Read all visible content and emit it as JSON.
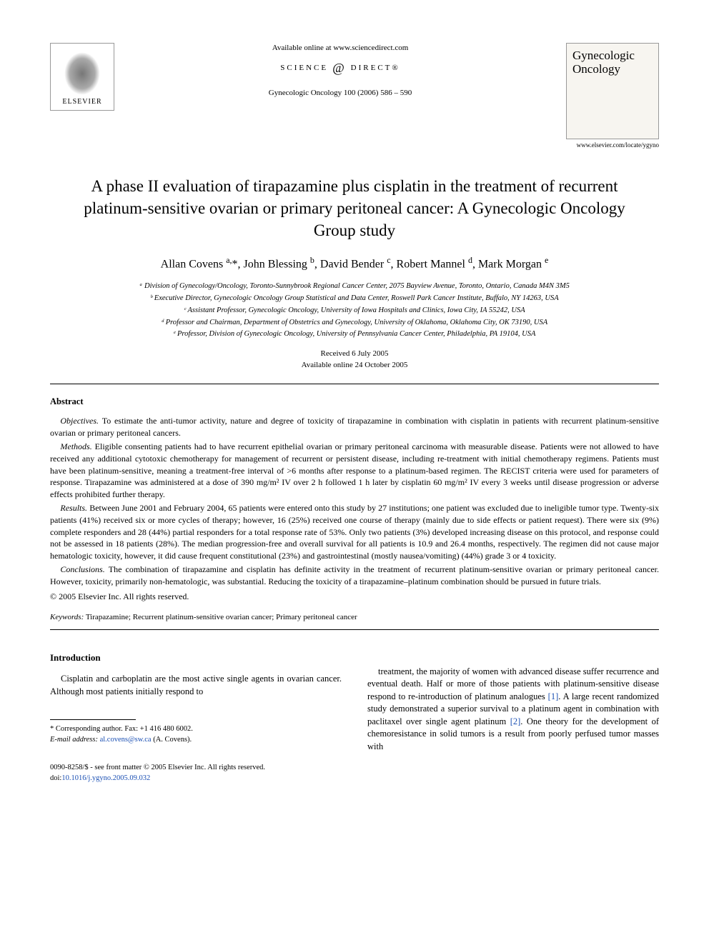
{
  "header": {
    "available_at": "Available online at www.sciencedirect.com",
    "sd_left": "SCIENCE",
    "sd_right": "DIRECT®",
    "citation": "Gynecologic Oncology 100 (2006) 586 – 590",
    "elsevier_label": "ELSEVIER",
    "journal_name": "Gynecologic Oncology",
    "journal_url": "www.elsevier.com/locate/ygyno"
  },
  "title": "A phase II evaluation of tirapazamine plus cisplatin in the treatment of recurrent platinum-sensitive ovarian or primary peritoneal cancer: A Gynecologic Oncology Group study",
  "authors_html": "Allan Covens <sup>a,</sup>*, John Blessing <sup>b</sup>, David Bender <sup>c</sup>, Robert Mannel <sup>d</sup>, Mark Morgan <sup>e</sup>",
  "affiliations": [
    "ᵃ Division of Gynecology/Oncology, Toronto-Sunnybrook Regional Cancer Center, 2075 Bayview Avenue, Toronto, Ontario, Canada M4N 3M5",
    "ᵇ Executive Director, Gynecologic Oncology Group Statistical and Data Center, Roswell Park Cancer Institute, Buffalo, NY 14263, USA",
    "ᶜ Assistant Professor, Gynecologic Oncology, University of Iowa Hospitals and Clinics, Iowa City, IA 55242, USA",
    "ᵈ Professor and Chairman, Department of Obstetrics and Gynecology, University of Oklahoma, Oklahoma City, OK 73190, USA",
    "ᵉ Professor, Division of Gynecologic Oncology, University of Pennsylvania Cancer Center, Philadelphia, PA 19104, USA"
  ],
  "dates": {
    "received": "Received 6 July 2005",
    "online": "Available online 24 October 2005"
  },
  "abstract": {
    "heading": "Abstract",
    "sections": [
      {
        "label": "Objectives.",
        "text": "To estimate the anti-tumor activity, nature and degree of toxicity of tirapazamine in combination with cisplatin in patients with recurrent platinum-sensitive ovarian or primary peritoneal cancers."
      },
      {
        "label": "Methods.",
        "text": "Eligible consenting patients had to have recurrent epithelial ovarian or primary peritoneal carcinoma with measurable disease. Patients were not allowed to have received any additional cytotoxic chemotherapy for management of recurrent or persistent disease, including re-treatment with initial chemotherapy regimens. Patients must have been platinum-sensitive, meaning a treatment-free interval of >6 months after response to a platinum-based regimen. The RECIST criteria were used for parameters of response. Tirapazamine was administered at a dose of 390 mg/m² IV over 2 h followed 1 h later by cisplatin 60 mg/m² IV every 3 weeks until disease progression or adverse effects prohibited further therapy."
      },
      {
        "label": "Results.",
        "text": "Between June 2001 and February 2004, 65 patients were entered onto this study by 27 institutions; one patient was excluded due to ineligible tumor type. Twenty-six patients (41%) received six or more cycles of therapy; however, 16 (25%) received one course of therapy (mainly due to side effects or patient request). There were six (9%) complete responders and 28 (44%) partial responders for a total response rate of 53%. Only two patients (3%) developed increasing disease on this protocol, and response could not be assessed in 18 patients (28%). The median progression-free and overall survival for all patients is 10.9 and 26.4 months, respectively. The regimen did not cause major hematologic toxicity, however, it did cause frequent constitutional (23%) and gastrointestinal (mostly nausea/vomiting) (44%) grade 3 or 4 toxicity."
      },
      {
        "label": "Conclusions.",
        "text": "The combination of tirapazamine and cisplatin has definite activity in the treatment of recurrent platinum-sensitive ovarian or primary peritoneal cancer. However, toxicity, primarily non-hematologic, was substantial. Reducing the toxicity of a tirapazamine–platinum combination should be pursued in future trials."
      }
    ],
    "copyright": "© 2005 Elsevier Inc. All rights reserved."
  },
  "keywords": {
    "label": "Keywords:",
    "text": "Tirapazamine; Recurrent platinum-sensitive ovarian cancer; Primary peritoneal cancer"
  },
  "intro": {
    "heading": "Introduction",
    "col1": "Cisplatin and carboplatin are the most active single agents in ovarian cancer. Although most patients initially respond to",
    "col2_part1": "treatment, the majority of women with advanced disease suffer recurrence and eventual death. Half or more of those patients with platinum-sensitive disease respond to re-introduction of platinum analogues ",
    "ref1": "[1]",
    "col2_part2": ". A large recent randomized study demonstrated a superior survival to a platinum agent in combination with paclitaxel over single agent platinum ",
    "ref2": "[2]",
    "col2_part3": ". One theory for the development of chemoresistance in solid tumors is a result from poorly perfused tumor masses with"
  },
  "footnotes": {
    "corr": "* Corresponding author. Fax: +1 416 480 6002.",
    "email_label": "E-mail address:",
    "email": "al.covens@sw.ca",
    "email_suffix": "(A. Covens)."
  },
  "footer": {
    "left_line1": "0090-8258/$ - see front matter © 2005 Elsevier Inc. All rights reserved.",
    "doi_label": "doi:",
    "doi": "10.1016/j.ygyno.2005.09.032"
  }
}
